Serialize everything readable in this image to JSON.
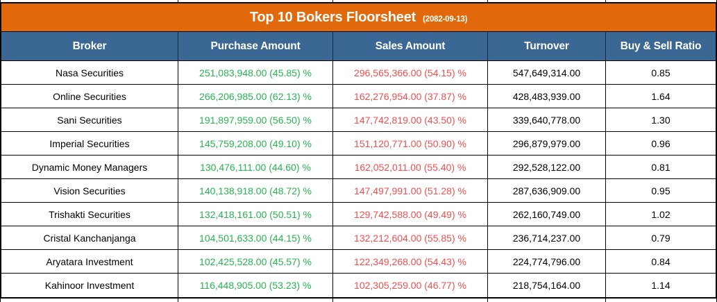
{
  "title": {
    "text": "Top 10 Bokers Floorsheet",
    "date": "(2082-09-13)"
  },
  "colors": {
    "title_bg": "#E2690B",
    "header_bg": "#3A6794",
    "purchase_green": "#27B450",
    "sales_red": "#EF4F4F",
    "grid_line": "#000000"
  },
  "chart_data": {
    "type": "table",
    "title": "Top 10 Bokers Floorsheet",
    "date_label": "(2082-09-13)",
    "columns": [
      "Broker",
      "Purchase Amount",
      "Sales Amount",
      "Turnover",
      "Buy & Sell Ratio"
    ],
    "column_keys": [
      "broker",
      "purchase",
      "sales",
      "turnover",
      "ratio"
    ],
    "rows": [
      [
        "Nasa Securities",
        "251,083,948.00 (45.85) %",
        "296,565,366.00 (54.15) %",
        "547,649,314.00",
        "0.85"
      ],
      [
        "Online Securities",
        "266,206,985.00 (62.13) %",
        "162,276,954.00 (37.87) %",
        "428,483,939.00",
        "1.64"
      ],
      [
        "Sani Securities",
        "191,897,959.00 (56.50) %",
        "147,742,819.00 (43.50) %",
        "339,640,778.00",
        "1.30"
      ],
      [
        "Imperial Securities",
        "145,759,208.00 (49.10) %",
        "151,120,771.00 (50.90) %",
        "296,879,979.00",
        "0.96"
      ],
      [
        "Dynamic Money Managers",
        "130,476,111.00 (44.60) %",
        "162,052,011.00 (55.40) %",
        "292,528,122.00",
        "0.81"
      ],
      [
        "Vision Securities",
        "140,138,918.00 (48.72) %",
        "147,497,991.00 (51.28) %",
        "287,636,909.00",
        "0.95"
      ],
      [
        "Trishakti Securities",
        "132,418,161.00 (50.51) %",
        "129,742,588.00 (49.49) %",
        "262,160,749.00",
        "1.02"
      ],
      [
        "Cristal Kanchanjanga",
        "104,501,633.00 (44.15) %",
        "132,212,604.00 (55.85) %",
        "236,714,237.00",
        "0.79"
      ],
      [
        "Aryatara Investment",
        "102,425,528.00 (45.57) %",
        "122,349,268.00 (54.43) %",
        "224,774,796.00",
        "0.84"
      ],
      [
        "Kahinoor Investment",
        "116,448,905.00 (53.23) %",
        "102,305,259.00 (46.77) %",
        "218,754,164.00",
        "1.14"
      ]
    ]
  }
}
